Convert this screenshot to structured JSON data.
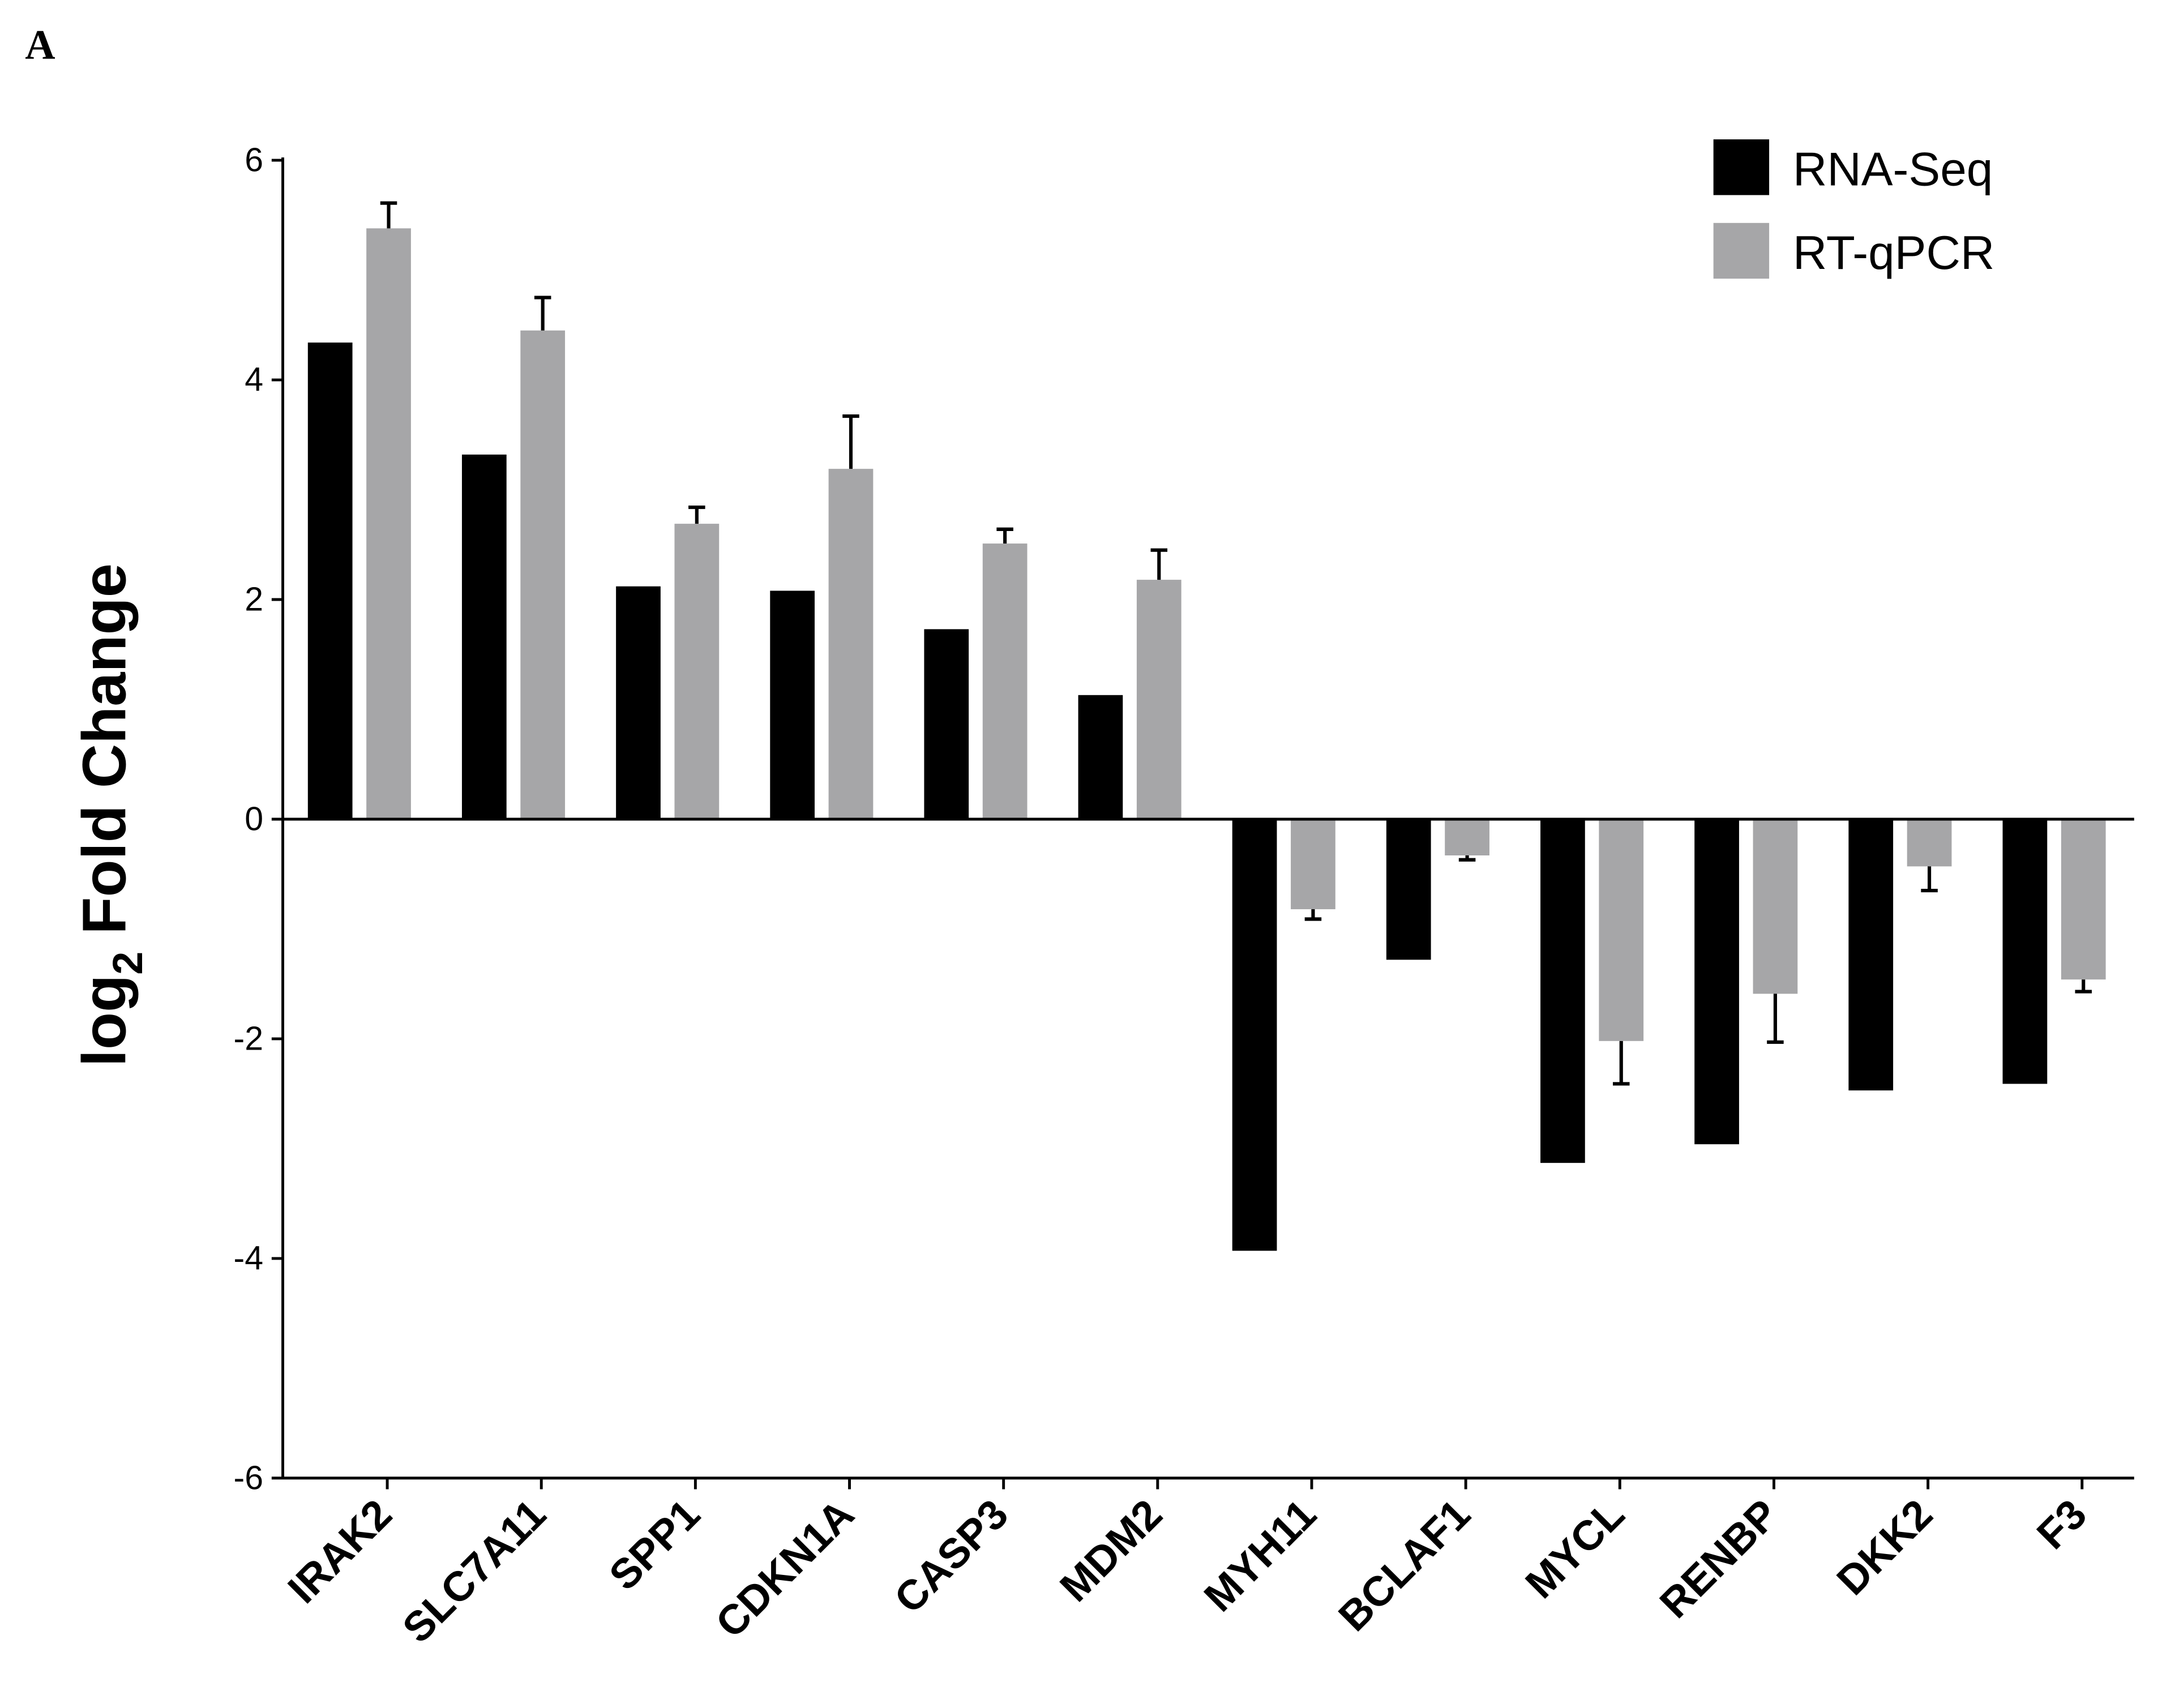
{
  "panel_label": "A",
  "chart_data": {
    "type": "bar",
    "title": "",
    "xlabel": "",
    "ylabel_main": "log",
    "ylabel_sub": "2",
    "ylabel_rest": " Fold Change",
    "ylim": [
      -6,
      6
    ],
    "yticks": [
      "6",
      "4",
      "2",
      "0",
      "-2",
      "-4",
      "-6"
    ],
    "ytick_values": [
      6,
      4,
      2,
      0,
      -2,
      -4,
      -6
    ],
    "grid": false,
    "legend_position": "top-right",
    "categories": [
      "IRAK2",
      "SLC7A11",
      "SPP1",
      "CDKN1A",
      "CASP3",
      "MDM2",
      "MYH11",
      "BCLAF1",
      "MYCL",
      "RENBP",
      "DKK2",
      "F3"
    ],
    "series": [
      {
        "name": "RNA-Seq",
        "color": "#000000",
        "values": [
          4.34,
          3.32,
          2.12,
          2.08,
          1.73,
          1.13,
          -3.93,
          -1.28,
          -3.13,
          -2.96,
          -2.47,
          -2.41
        ]
      },
      {
        "name": "RT-qPCR",
        "color": "#a6a6a8",
        "values": [
          5.38,
          4.45,
          2.69,
          3.19,
          2.51,
          2.18,
          -0.82,
          -0.33,
          -2.02,
          -1.59,
          -0.43,
          -1.46
        ],
        "error": [
          0.23,
          0.3,
          0.15,
          0.48,
          0.13,
          0.27,
          0.09,
          0.04,
          0.39,
          0.44,
          0.22,
          0.11
        ]
      }
    ]
  }
}
